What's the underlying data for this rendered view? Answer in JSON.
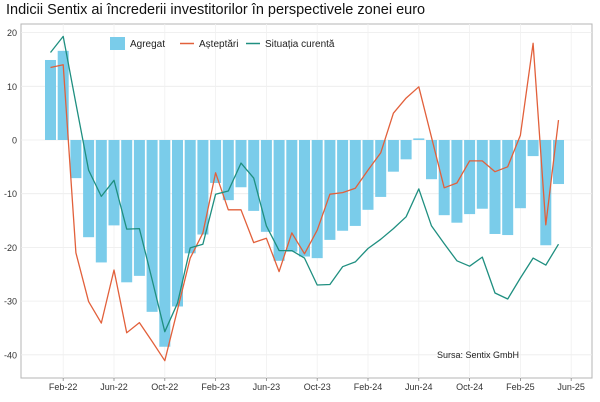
{
  "chart_data": {
    "type": "bar+line",
    "title": "Indicii Sentix ai încrederii investitorilor în perspectivele zonei euro",
    "xlabel": "",
    "ylabel": "",
    "ylim": [
      -44,
      21
    ],
    "yticks": [
      20,
      10,
      0,
      -10,
      -20,
      -30,
      -40
    ],
    "ytick_labels": [
      "20",
      "10",
      "0",
      "-10",
      "-20",
      "-30",
      "-40"
    ],
    "xticks": [
      "Feb-22",
      "Jun-22",
      "Oct-22",
      "Feb-23",
      "Jun-23",
      "Oct-23",
      "Feb-24",
      "Jun-24",
      "Oct-24",
      "Feb-25",
      "Jun-25"
    ],
    "grid": true,
    "legend_position": "top-left",
    "annotation": "Sursa: Sentix GmbH",
    "months": [
      "2022-01",
      "2022-02",
      "2022-03",
      "2022-04",
      "2022-05",
      "2022-06",
      "2022-07",
      "2022-08",
      "2022-09",
      "2022-10",
      "2022-11",
      "2022-12",
      "2023-01",
      "2023-02",
      "2023-03",
      "2023-04",
      "2023-05",
      "2023-06",
      "2023-07",
      "2023-08",
      "2023-09",
      "2023-10",
      "2023-11",
      "2023-12",
      "2024-01",
      "2024-02",
      "2024-03",
      "2024-04",
      "2024-05",
      "2024-06",
      "2024-07",
      "2024-08",
      "2024-09",
      "2024-10",
      "2024-11",
      "2024-12",
      "2025-01",
      "2025-02",
      "2025-03",
      "2025-04",
      "2025-05"
    ],
    "series": [
      {
        "name": "Agregat",
        "kind": "bar",
        "color": "#7accea",
        "values": [
          14.9,
          16.6,
          -7.1,
          -18.1,
          -22.8,
          -15.9,
          -26.5,
          -25.3,
          -32.0,
          -38.5,
          -31.0,
          -21.1,
          -17.6,
          -8.0,
          -11.2,
          -8.8,
          -13.2,
          -17.1,
          -22.5,
          -20.8,
          -21.7,
          -22.0,
          -18.6,
          -16.9,
          -16.0,
          -13.0,
          -10.6,
          -5.9,
          -3.6,
          0.3,
          -7.3,
          -14.0,
          -15.4,
          -13.8,
          -12.8,
          -17.5,
          -17.7,
          -12.7,
          -3.0,
          -19.6,
          -8.2
        ]
      },
      {
        "name": "Așteptări",
        "kind": "line",
        "color": "#e2603b",
        "values": [
          13.5,
          14.0,
          -21.0,
          -30.1,
          -34.1,
          -24.2,
          -35.9,
          -34.0,
          -37.5,
          -41.1,
          -31.6,
          -22.0,
          -17.3,
          -6.1,
          -13.0,
          -13.0,
          -19.1,
          -18.3,
          -24.5,
          -17.3,
          -21.2,
          -16.8,
          -10.1,
          -9.8,
          -9.0,
          -5.6,
          -2.4,
          5.0,
          7.8,
          9.9,
          0.5,
          -8.9,
          -8.0,
          -3.9,
          -3.9,
          -5.9,
          -5.0,
          0.9,
          18.0,
          -15.8,
          3.7
        ]
      },
      {
        "name": "Situația curentă",
        "kind": "line",
        "color": "#1f8f80",
        "values": [
          16.3,
          19.3,
          6.8,
          -5.6,
          -10.5,
          -7.5,
          -16.6,
          -16.5,
          -26.0,
          -35.7,
          -30.4,
          -20.1,
          -19.4,
          -10.1,
          -9.5,
          -4.3,
          -7.1,
          -16.0,
          -20.6,
          -20.6,
          -22.0,
          -27.0,
          -26.9,
          -23.6,
          -22.7,
          -20.2,
          -18.5,
          -16.5,
          -14.3,
          -9.1,
          -16.0,
          -19.3,
          -22.5,
          -23.5,
          -21.8,
          -28.5,
          -29.6,
          -25.7,
          -22.0,
          -23.3,
          -19.4
        ]
      }
    ]
  }
}
